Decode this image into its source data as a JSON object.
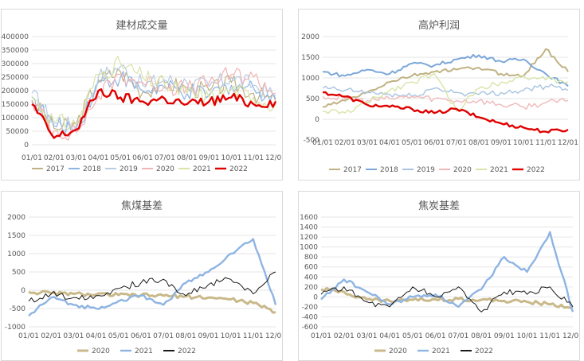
{
  "chart_data": [
    {
      "type": "line",
      "title": "建材成交量",
      "categories": [
        "01/01",
        "02/01",
        "03/01",
        "04/01",
        "05/01",
        "06/01",
        "07/01",
        "08/01",
        "09/01",
        "10/01",
        "11/01",
        "12/01"
      ],
      "yticks": [
        0,
        50000,
        100000,
        150000,
        200000,
        250000,
        300000,
        350000,
        400000
      ],
      "ylim": [
        0,
        400000
      ],
      "legend": "bottom",
      "series": [
        {
          "name": "2017",
          "color": "#c0b283",
          "width": 1.2,
          "values": [
            165000,
            60000,
            75000,
            240000,
            270000,
            195000,
            230000,
            210000,
            200000,
            230000,
            190000,
            160000
          ]
        },
        {
          "name": "2018",
          "color": "#8eb4e3",
          "width": 1.2,
          "values": [
            175000,
            70000,
            60000,
            230000,
            250000,
            200000,
            210000,
            190000,
            185000,
            220000,
            210000,
            170000
          ]
        },
        {
          "name": "2019",
          "color": "#b8cce4",
          "width": 1.2,
          "values": [
            190000,
            80000,
            70000,
            250000,
            290000,
            220000,
            240000,
            230000,
            215000,
            250000,
            220000,
            180000
          ]
        },
        {
          "name": "2020",
          "color": "#f2b5b5",
          "width": 1.2,
          "values": [
            160000,
            50000,
            45000,
            180000,
            260000,
            230000,
            220000,
            205000,
            230000,
            260000,
            250000,
            190000
          ]
        },
        {
          "name": "2021",
          "color": "#d8e4a8",
          "width": 1.2,
          "values": [
            180000,
            85000,
            75000,
            260000,
            300000,
            250000,
            220000,
            190000,
            175000,
            205000,
            175000,
            150000
          ]
        },
        {
          "name": "2022",
          "color": "#e00000",
          "width": 2.4,
          "values": [
            150000,
            25000,
            55000,
            200000,
            175000,
            160000,
            170000,
            150000,
            160000,
            175000,
            150000,
            160000
          ]
        }
      ]
    },
    {
      "type": "line",
      "title": "高炉利润",
      "categories": [
        "01/01",
        "02/01",
        "03/01",
        "04/01",
        "05/01",
        "06/01",
        "07/01",
        "08/01",
        "09/01",
        "10/01",
        "11/01",
        "12/01"
      ],
      "yticks": [
        -500,
        0,
        500,
        1000,
        1500,
        2000
      ],
      "ylim": [
        -500,
        2000
      ],
      "legend": "bottom",
      "series": [
        {
          "name": "2017",
          "color": "#c0b283",
          "width": 2,
          "values": [
            300,
            450,
            650,
            900,
            1050,
            1150,
            1200,
            1250,
            1100,
            1050,
            1700,
            1150
          ]
        },
        {
          "name": "2018",
          "color": "#7ba7d9",
          "width": 2,
          "values": [
            1150,
            1050,
            1200,
            1100,
            1350,
            1300,
            1450,
            1550,
            1400,
            1450,
            1100,
            800
          ]
        },
        {
          "name": "2019",
          "color": "#a8c4e0",
          "width": 1.4,
          "values": [
            750,
            700,
            650,
            600,
            550,
            750,
            650,
            600,
            650,
            700,
            800,
            700
          ]
        },
        {
          "name": "2020",
          "color": "#f0b8b8",
          "width": 1.4,
          "values": [
            550,
            500,
            450,
            500,
            550,
            500,
            450,
            450,
            350,
            300,
            400,
            450
          ]
        },
        {
          "name": "2021",
          "color": "#d8e4a8",
          "width": 1.4,
          "values": [
            200,
            150,
            400,
            700,
            900,
            1100,
            200,
            750,
            900,
            1050,
            950,
            900
          ]
        },
        {
          "name": "2022",
          "color": "#e00000",
          "width": 2.4,
          "values": [
            650,
            550,
            350,
            300,
            250,
            150,
            250,
            50,
            -100,
            -200,
            -300,
            -250
          ]
        }
      ]
    },
    {
      "type": "line",
      "title": "焦煤基差",
      "categories": [
        "01/01",
        "02/01",
        "03/01",
        "04/01",
        "05/01",
        "06/01",
        "07/01",
        "08/01",
        "09/01",
        "10/01",
        "11/01",
        "12/01"
      ],
      "yticks": [
        -1000,
        -500,
        0,
        500,
        1000,
        1500,
        2000
      ],
      "ylim": [
        -1000,
        2000
      ],
      "legend": "bottom",
      "series": [
        {
          "name": "2020",
          "color": "#c9b98a",
          "width": 3,
          "values": [
            -50,
            -80,
            -100,
            -120,
            -130,
            -140,
            -150,
            -170,
            -200,
            -250,
            -350,
            -600
          ]
        },
        {
          "name": "2021",
          "color": "#8eb4e3",
          "width": 2.4,
          "values": [
            -700,
            -200,
            -400,
            -500,
            -300,
            -150,
            -400,
            200,
            500,
            1000,
            1400,
            -400
          ]
        },
        {
          "name": "2022",
          "color": "#1a1a1a",
          "width": 1,
          "values": [
            -300,
            -100,
            -200,
            -150,
            50,
            200,
            300,
            -150,
            150,
            300,
            -100,
            500
          ]
        }
      ]
    },
    {
      "type": "line",
      "title": "焦炭基差",
      "categories": [
        "01/01",
        "02/01",
        "03/01",
        "04/01",
        "05/01",
        "06/01",
        "07/01",
        "08/01",
        "09/01",
        "10/01",
        "11/01",
        "12/01"
      ],
      "yticks": [
        -600,
        -400,
        -200,
        0,
        200,
        400,
        600,
        800,
        1000,
        1200,
        1400,
        1600
      ],
      "ylim": [
        -600,
        1600
      ],
      "legend": "bottom",
      "series": [
        {
          "name": "2020",
          "color": "#c9b98a",
          "width": 3,
          "values": [
            150,
            100,
            -50,
            -80,
            -60,
            -50,
            -40,
            -60,
            -80,
            -100,
            -150,
            -200
          ]
        },
        {
          "name": "2021",
          "color": "#8eb4e3",
          "width": 2.4,
          "values": [
            -50,
            350,
            100,
            -150,
            0,
            50,
            -200,
            150,
            800,
            500,
            1300,
            -300
          ]
        },
        {
          "name": "2022",
          "color": "#1a1a1a",
          "width": 1,
          "values": [
            50,
            200,
            -100,
            -200,
            200,
            0,
            200,
            -300,
            100,
            50,
            200,
            -200
          ]
        }
      ]
    }
  ]
}
